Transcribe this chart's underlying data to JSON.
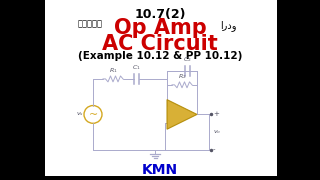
{
  "title_top": "10.7(2)",
  "hindi_text": "हिंदी",
  "urdu_text": "اردو",
  "main_title": "Op Amp",
  "sub_title": "AC Circuit",
  "example_text": "(Example 10.12 & PP 10.12)",
  "kmn_text": "KMN",
  "bg_color": "#000000",
  "panel_color": "#ffffff",
  "title_color": "#000000",
  "main_title_color": "#cc0000",
  "kmn_color": "#0000cc",
  "wire_color": "#aaaacc",
  "opamp_fill": "#d4a820",
  "opamp_edge": "#b08800",
  "source_fill": "#d4a820",
  "label_color": "#555566"
}
